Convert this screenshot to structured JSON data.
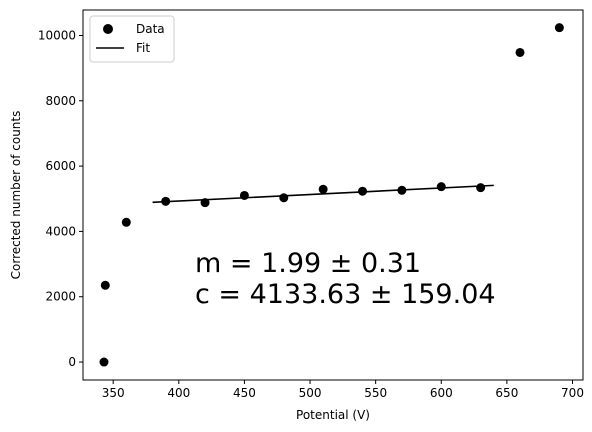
{
  "chart_data": {
    "type": "scatter",
    "xlabel": "Potential (V)",
    "ylabel": "Corrected number of counts",
    "xlim": [
      327,
      708
    ],
    "ylim": [
      -550,
      10780
    ],
    "xticks": [
      350,
      400,
      450,
      500,
      550,
      600,
      650,
      700
    ],
    "yticks": [
      0,
      2000,
      4000,
      6000,
      8000,
      10000
    ],
    "grid": false,
    "legend_position": "top-left",
    "series": [
      {
        "name": "Data",
        "kind": "points",
        "color": "#000000",
        "x": [
          343,
          344,
          360,
          390,
          420,
          450,
          480,
          510,
          540,
          570,
          600,
          630,
          660,
          690
        ],
        "y": [
          0,
          2350,
          4280,
          4920,
          4880,
          5100,
          5030,
          5290,
          5230,
          5260,
          5370,
          5340,
          9480,
          10240
        ]
      },
      {
        "name": "Fit",
        "kind": "line",
        "color": "#000000",
        "x": [
          380,
          640
        ],
        "y": [
          4890,
          5410
        ]
      }
    ],
    "annotations": [
      {
        "text": "m = 1.99 ± 0.31"
      },
      {
        "text": "c = 4133.63 ± 159.04"
      }
    ]
  }
}
